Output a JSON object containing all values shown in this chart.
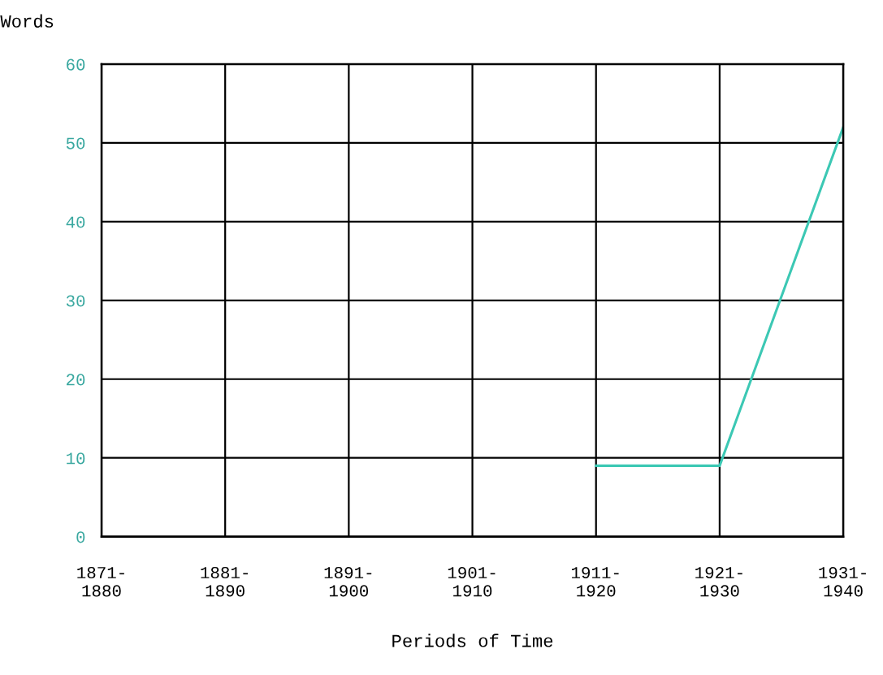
{
  "chart_data": {
    "type": "line",
    "categories": [
      "1871-\n1880",
      "1881-\n1890",
      "1891-\n1900",
      "1901-\n1910",
      "1911-\n1920",
      "1921-\n1930",
      "1931-\n1940"
    ],
    "series": [
      {
        "color": "#3cc8b4",
        "values": [
          null,
          null,
          null,
          null,
          9,
          9,
          52
        ]
      }
    ],
    "xlabel": "Periods of Time",
    "ylabel": "Words",
    "ylim": [
      0,
      60
    ],
    "yticks": [
      0,
      10,
      20,
      30,
      40,
      50,
      60
    ],
    "grid": true,
    "marker": "none",
    "line_style": "solid"
  }
}
